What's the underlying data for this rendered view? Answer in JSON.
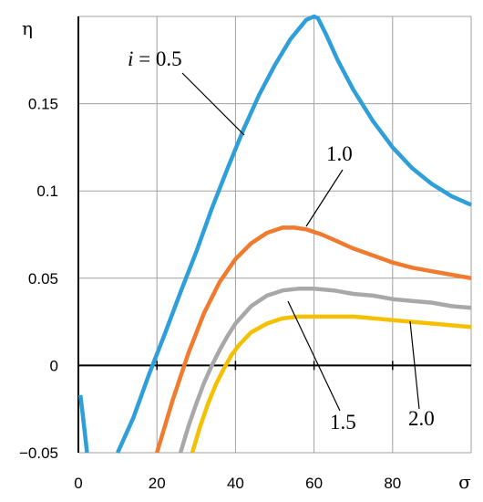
{
  "chart_data": {
    "type": "line",
    "xlabel": "σ",
    "ylabel": "η",
    "xlim": [
      0,
      100
    ],
    "ylim": [
      -0.05,
      0.2
    ],
    "grid": true,
    "x_ticks": [
      0,
      20,
      40,
      60,
      80
    ],
    "x_tick_labels": [
      "0",
      "20",
      "40",
      "60",
      "80"
    ],
    "y_ticks": [
      -0.05,
      0,
      0.05,
      0.1,
      0.15
    ],
    "y_tick_labels": [
      "−0.05",
      "0",
      "0.05",
      "0.1",
      "0.15"
    ],
    "series": [
      {
        "color": "#2e9fd8",
        "label_parts": [
          "i",
          " = 0.5"
        ],
        "x": [
          10,
          14,
          18,
          22,
          26,
          30,
          34,
          38,
          42,
          46,
          50,
          54,
          58,
          60,
          61,
          63,
          66,
          70,
          75,
          80,
          85,
          90,
          95,
          100
        ],
        "y": [
          -0.05,
          -0.03,
          -0.005,
          0.018,
          0.042,
          0.065,
          0.09,
          0.113,
          0.135,
          0.155,
          0.172,
          0.187,
          0.198,
          0.2,
          0.199,
          0.19,
          0.175,
          0.158,
          0.14,
          0.125,
          0.113,
          0.104,
          0.097,
          0.092
        ]
      },
      {
        "color": "#2e9fd8",
        "x": [
          0.5,
          1.2,
          1.8,
          2.2
        ],
        "y": [
          -0.017,
          -0.03,
          -0.042,
          -0.05
        ]
      },
      {
        "color": "#f07a2e",
        "label_parts": [
          "1.0"
        ],
        "x": [
          20,
          24,
          28,
          32,
          36,
          40,
          44,
          48,
          52,
          55,
          58,
          62,
          66,
          70,
          75,
          80,
          85,
          90,
          95,
          100
        ],
        "y": [
          -0.05,
          -0.02,
          0.007,
          0.03,
          0.048,
          0.061,
          0.07,
          0.076,
          0.079,
          0.079,
          0.078,
          0.075,
          0.071,
          0.067,
          0.063,
          0.059,
          0.056,
          0.054,
          0.052,
          0.05
        ]
      },
      {
        "color": "#a8a8a8",
        "label_parts": [
          "1.5"
        ],
        "x": [
          26,
          28,
          30,
          32,
          34,
          36,
          38,
          40,
          44,
          48,
          52,
          56,
          60,
          65,
          70,
          75,
          80,
          85,
          90,
          95,
          100
        ],
        "y": [
          -0.05,
          -0.035,
          -0.022,
          -0.01,
          0.0,
          0.009,
          0.017,
          0.024,
          0.034,
          0.04,
          0.043,
          0.044,
          0.044,
          0.043,
          0.041,
          0.04,
          0.038,
          0.037,
          0.036,
          0.034,
          0.033
        ]
      },
      {
        "color": "#f5c000",
        "label_parts": [
          "2.0"
        ],
        "x": [
          29,
          31,
          33,
          35,
          37,
          39,
          41,
          44,
          48,
          52,
          56,
          60,
          65,
          70,
          75,
          80,
          85,
          90,
          95,
          100
        ],
        "y": [
          -0.05,
          -0.035,
          -0.022,
          -0.011,
          -0.002,
          0.006,
          0.012,
          0.019,
          0.024,
          0.027,
          0.028,
          0.028,
          0.028,
          0.028,
          0.027,
          0.026,
          0.025,
          0.024,
          0.023,
          0.022
        ]
      }
    ],
    "annotations": [
      {
        "series": 0,
        "parts": [
          "i",
          " = 0.5"
        ],
        "italic_first": true,
        "point": [
          33.5,
          0.132
        ]
      },
      {
        "series": 2,
        "parts": [
          "1.0"
        ],
        "point": [
          56,
          0.078
        ]
      },
      {
        "series": 3,
        "parts": [
          "1.5"
        ],
        "point": [
          53,
          0.037
        ]
      },
      {
        "series": 4,
        "parts": [
          "2.0"
        ],
        "point": [
          72,
          0.025
        ]
      }
    ]
  }
}
